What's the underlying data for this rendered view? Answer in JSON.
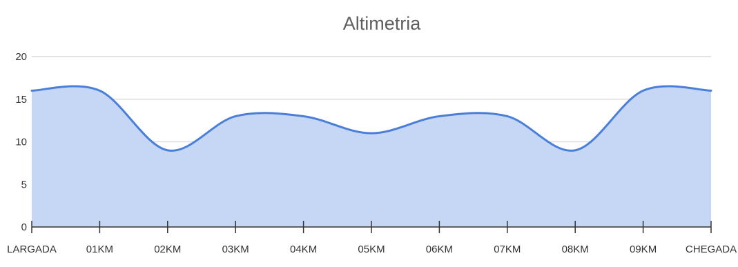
{
  "chart_data": {
    "type": "area",
    "title": "Altimetria",
    "xlabel": "",
    "ylabel": "",
    "categories": [
      "LARGADA",
      "01KM",
      "02KM",
      "03KM",
      "04KM",
      "05KM",
      "06KM",
      "07KM",
      "08KM",
      "09KM",
      "CHEGADA"
    ],
    "values": [
      16,
      16,
      9,
      13,
      13,
      11,
      13,
      13,
      9,
      16,
      16
    ],
    "ylim": [
      0,
      20
    ],
    "yticks": [
      "0",
      "5",
      "10",
      "15",
      "20"
    ],
    "grid": true,
    "legend": "none",
    "colors": {
      "line": "#4a7fd9",
      "fill": "#c5d7f5",
      "grid": "#dcdcdc",
      "axis": "#333333"
    }
  }
}
